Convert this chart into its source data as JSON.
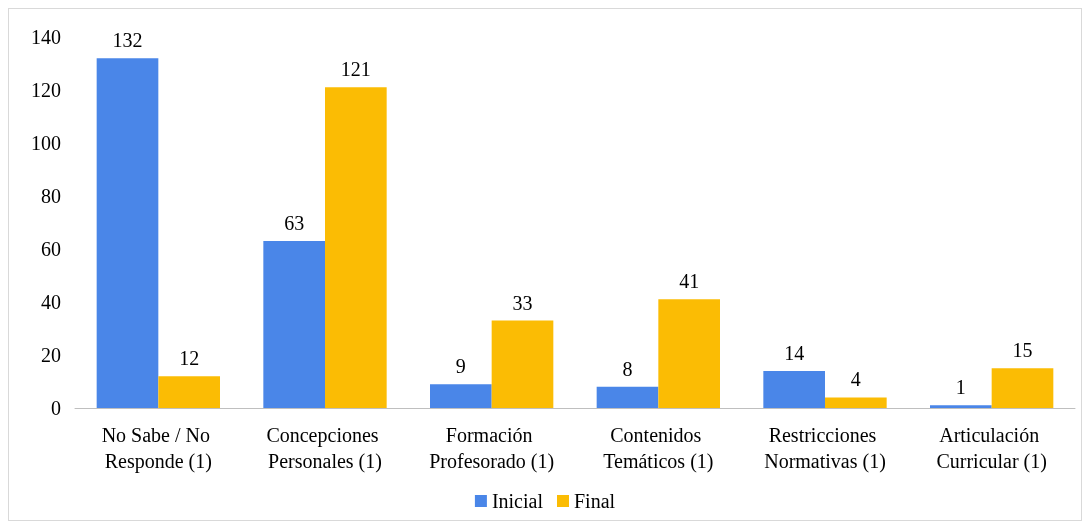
{
  "chart_data": {
    "type": "bar",
    "categories": [
      "No Sabe / No Responde (1)",
      "Concepciones Personales (1)",
      "Formación Profesorado (1)",
      "Contenidos Temáticos (1)",
      "Restricciones Normativas (1)",
      "Articulación Curricular (1)"
    ],
    "series": [
      {
        "name": "Inicial",
        "color": "#4a86e8",
        "values": [
          132,
          63,
          9,
          8,
          14,
          1
        ]
      },
      {
        "name": "Final",
        "color": "#fbbc04",
        "values": [
          12,
          121,
          33,
          41,
          4,
          15
        ]
      }
    ],
    "ylim": [
      0,
      140
    ],
    "yticks": [
      0,
      20,
      40,
      60,
      80,
      100,
      120,
      140
    ],
    "grid": false,
    "legend": "bottom",
    "data_labels": true
  }
}
